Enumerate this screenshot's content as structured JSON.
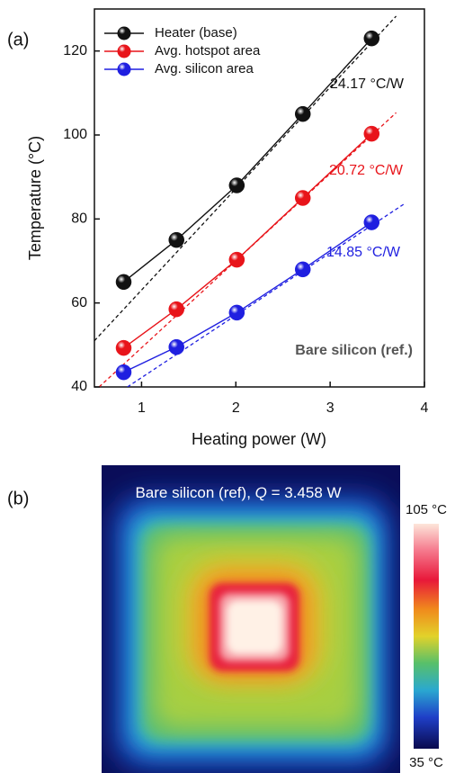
{
  "chart_data": {
    "type": "line",
    "panel_label": "(a)",
    "x_label": "Heating power (W)",
    "y_label": "Temperature (°C)",
    "xlim": [
      0.5,
      4
    ],
    "ylim": [
      40,
      130
    ],
    "xticks": [
      1,
      2,
      3,
      4
    ],
    "yticks": [
      40,
      60,
      80,
      100,
      120
    ],
    "legend": "upper left",
    "series": [
      {
        "name": "Heater (base)",
        "color": "#111111",
        "x": [
          0.81,
          1.37,
          2.01,
          2.71,
          3.44
        ],
        "values": [
          65,
          75,
          88,
          105,
          123
        ]
      },
      {
        "name": "Avg. hotspot area",
        "color": "#e8141a",
        "x": [
          0.81,
          1.37,
          2.01,
          2.71,
          3.44
        ],
        "values": [
          49.3,
          58.5,
          70.3,
          85,
          100.3
        ]
      },
      {
        "name": "Avg. silicon area",
        "color": "#1f1fe0",
        "x": [
          0.81,
          1.37,
          2.01,
          2.71,
          3.44
        ],
        "values": [
          43.5,
          49.5,
          57.7,
          68,
          79.2
        ]
      }
    ],
    "fits": [
      {
        "color": "#111111",
        "x": [
          0.5,
          3.7
        ],
        "values": [
          51,
          128.3
        ]
      },
      {
        "color": "#e8141a",
        "x": [
          0.55,
          3.7
        ],
        "values": [
          40,
          105.3
        ]
      },
      {
        "color": "#1f1fe0",
        "x": [
          0.85,
          3.8
        ],
        "values": [
          40,
          83.8
        ]
      }
    ],
    "annotations": [
      "24.17 °C/W",
      "20.72 °C/W",
      "14.85 °C/W",
      "Bare silicon (ref.)"
    ]
  },
  "image_panel": {
    "label": "(b)",
    "title_parts": [
      "Bare silicon (ref), ",
      "Q",
      " = 3.458 W"
    ],
    "colorbar_max": "105 °C",
    "colorbar_min": "35 °C"
  }
}
